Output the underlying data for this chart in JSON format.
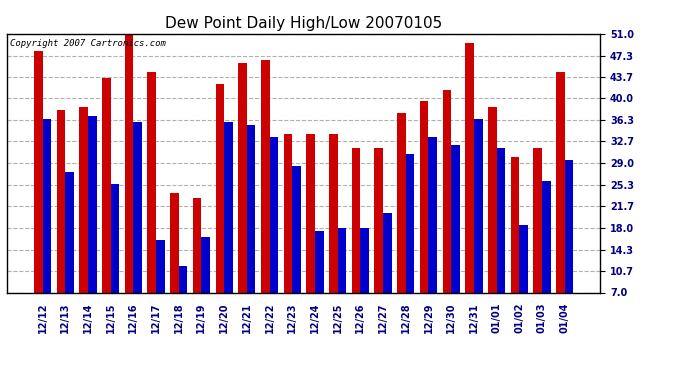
{
  "title": "Dew Point Daily High/Low 20070105",
  "copyright": "Copyright 2007 Cartronics.com",
  "dates": [
    "12/12",
    "12/13",
    "12/14",
    "12/15",
    "12/16",
    "12/17",
    "12/18",
    "12/19",
    "12/20",
    "12/21",
    "12/22",
    "12/23",
    "12/24",
    "12/25",
    "12/26",
    "12/27",
    "12/28",
    "12/29",
    "12/30",
    "12/31",
    "01/01",
    "01/02",
    "01/03",
    "01/04"
  ],
  "highs": [
    48.0,
    38.0,
    38.5,
    43.5,
    52.0,
    44.5,
    24.0,
    23.0,
    42.5,
    46.0,
    46.5,
    34.0,
    34.0,
    34.0,
    31.5,
    31.5,
    37.5,
    39.5,
    41.5,
    49.5,
    38.5,
    30.0,
    31.5,
    44.5
  ],
  "lows": [
    36.5,
    27.5,
    37.0,
    25.5,
    36.0,
    16.0,
    11.5,
    16.5,
    36.0,
    35.5,
    33.5,
    28.5,
    17.5,
    18.0,
    18.0,
    20.5,
    30.5,
    33.5,
    32.0,
    36.5,
    31.5,
    18.5,
    26.0,
    29.5
  ],
  "high_color": "#cc0000",
  "low_color": "#0000cc",
  "bg_color": "#ffffff",
  "grid_color": "#b0b0b0",
  "yticks": [
    7.0,
    10.7,
    14.3,
    18.0,
    21.7,
    25.3,
    29.0,
    32.7,
    36.3,
    40.0,
    43.7,
    47.3,
    51.0
  ],
  "ymin": 7.0,
  "ymax": 51.0,
  "title_fontsize": 11,
  "label_fontsize": 7,
  "copyright_fontsize": 6.5
}
